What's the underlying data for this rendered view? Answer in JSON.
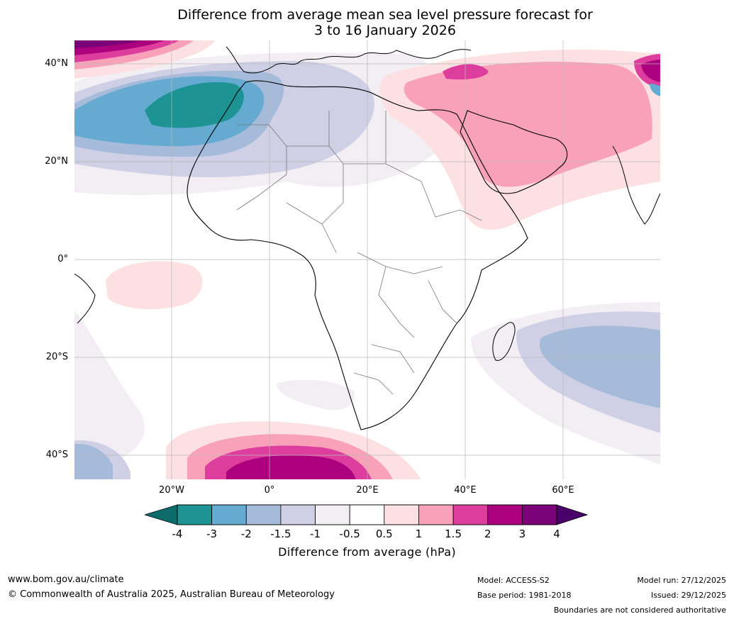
{
  "title": {
    "line1": "Difference from average mean sea level pressure forecast for",
    "line2": "3 to 16 January 2026"
  },
  "axes": {
    "lat_labels": [
      "40°N",
      "20°N",
      "0°",
      "20°S",
      "40°S"
    ],
    "lon_labels": [
      "20°W",
      "0°",
      "20°E",
      "40°E",
      "60°E"
    ]
  },
  "colorbar": {
    "title": "Difference from average (hPa)",
    "ticks": [
      "-4",
      "-3",
      "-2",
      "-1.5",
      "-1",
      "-0.5",
      "0.5",
      "1",
      "1.5",
      "2",
      "3",
      "4"
    ],
    "colors": [
      "#1d9393",
      "#65aad0",
      "#a6bbd9",
      "#cfd0e5",
      "#f2eef4",
      "#ffffff",
      "#fde0e2",
      "#f9a1b9",
      "#dd3d9c",
      "#ad007e",
      "#7a0177"
    ],
    "under_color": "#0d6b6b",
    "over_color": "#49006a"
  },
  "chart_data": {
    "type": "heatmap",
    "variable": "Mean sea level pressure difference from average",
    "units": "hPa",
    "period": "3 to 16 January 2026",
    "lon_range": [
      -40,
      80
    ],
    "lat_range": [
      -45,
      45
    ],
    "levels": [
      -4,
      -3,
      -2,
      -1.5,
      -1,
      -0.5,
      0.5,
      1,
      1.5,
      2,
      3,
      4
    ],
    "features": [
      {
        "region": "North Atlantic west of Morocco",
        "anomaly_min": -4,
        "description": "negative anomaly centre below -3 hPa near 30°N 20°W"
      },
      {
        "region": "Middle East and Arabian Peninsula",
        "anomaly_max": 2,
        "description": "positive anomaly 1 to 1.5 hPa, above 2 hPa over eastern Mediterranean/Turkey"
      },
      {
        "region": "Southern Ocean south of Africa",
        "anomaly_max": 3,
        "description": "positive anomaly above 3 hPa near 40°S 5°E"
      },
      {
        "region": "Southwest Indian Ocean",
        "anomaly_min": -2,
        "description": "negative anomaly -1.5 to -2 hPa near 25°S 65°E"
      },
      {
        "region": "Tropical Atlantic",
        "anomaly_max": 1,
        "description": "weak positive anomaly 0.5 to 1 hPa near 5°S 20°W"
      }
    ]
  },
  "footer": {
    "url": "www.bom.gov.au/climate",
    "copyright": "© Commonwealth of Australia 2025, Australian Bureau of Meteorology",
    "model": "Model: ACCESS-S2",
    "base_period": "Base period: 1981-2018",
    "model_run": "Model run: 27/12/2025",
    "issued": "Issued: 29/12/2025",
    "disclaimer": "Boundaries are not considered authoritative"
  }
}
